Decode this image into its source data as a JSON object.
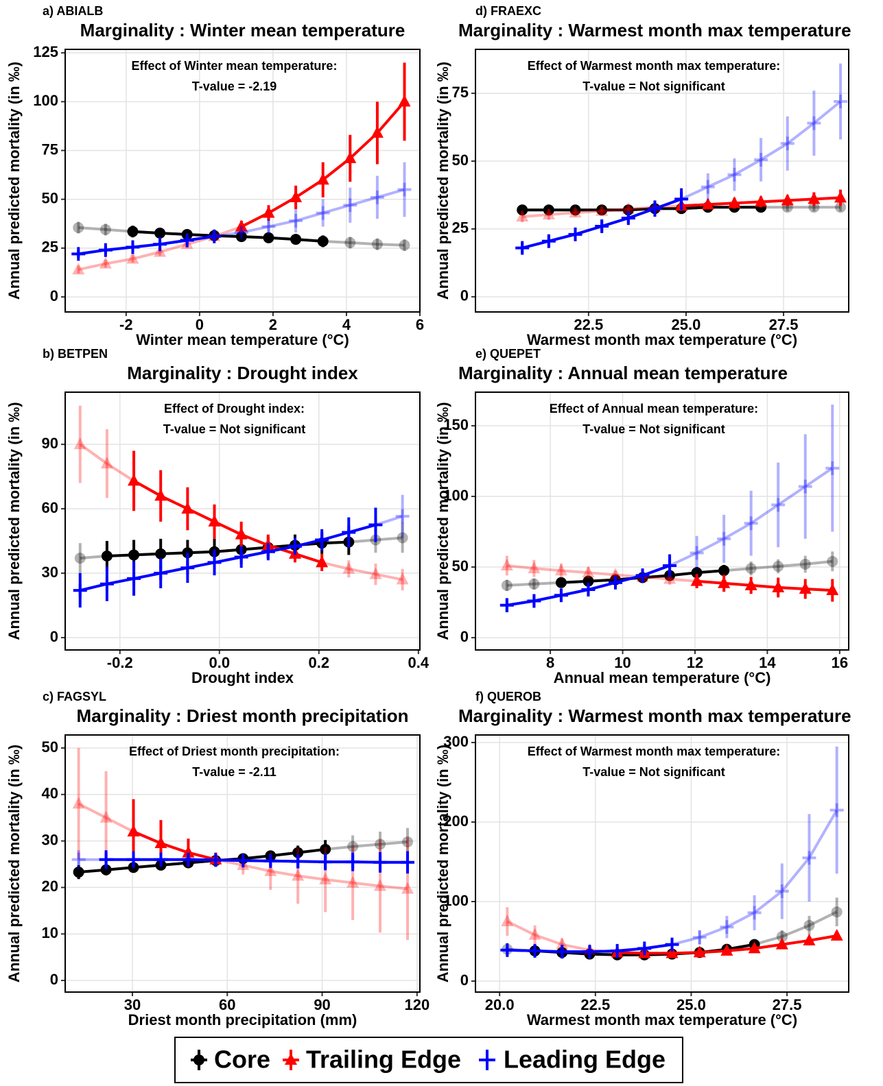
{
  "chart_data": [
    {
      "type": "line",
      "panel_label": "a) ABIALB",
      "title": "Marginality : Winter mean temperature",
      "annotation": [
        "Effect of Winter mean temperature:",
        "T-value = -2.19"
      ],
      "xlabel": "Winter mean temperature (°C)",
      "ylabel": "Annual predicted mortality (in ‰)",
      "xlim": [
        -3.66,
        6
      ],
      "ylim": [
        -7.7,
        126.8
      ],
      "xticks": [
        -2,
        0,
        2,
        4,
        6
      ],
      "yticks": [
        0,
        25,
        50,
        75,
        100,
        125
      ],
      "grid": true,
      "x": [
        -3.3,
        -2.56,
        -1.82,
        -1.08,
        -0.34,
        0.4,
        1.14,
        1.88,
        2.62,
        3.36,
        4.1,
        4.84,
        5.58
      ],
      "series": [
        {
          "name": "Core",
          "color": "#000000",
          "marker": "circle",
          "solid_xlim": [
            -2.5,
            3.4
          ],
          "values": [
            35.5,
            34.5,
            33.5,
            32.7,
            32,
            31.4,
            30.9,
            30.3,
            29.5,
            28.5,
            27.8,
            27,
            26.5
          ],
          "errors": [
            3,
            3,
            3,
            2.5,
            2.5,
            2,
            2,
            2,
            2.5,
            3,
            3,
            3,
            3
          ]
        },
        {
          "name": "Trailing Edge",
          "color": "#ff0000",
          "marker": "triangle",
          "solid_xlim": [
            0.6,
            5.6
          ],
          "values": [
            14,
            17,
            19.5,
            23,
            27,
            31,
            36,
            43,
            51,
            60,
            71,
            84,
            100
          ],
          "errors": [
            2,
            2,
            2,
            2,
            2,
            2,
            3,
            4,
            6,
            9,
            12,
            16,
            20
          ]
        },
        {
          "name": "Leading Edge",
          "color": "#0000ff",
          "marker": "plus",
          "solid_xlim": [
            -3.3,
            0.6
          ],
          "values": [
            22,
            24,
            25.5,
            27,
            29,
            31,
            33,
            36,
            39,
            43,
            47,
            51,
            55
          ],
          "errors": [
            2,
            2,
            2,
            2,
            2,
            2,
            3,
            4,
            6,
            7,
            9,
            11,
            14
          ]
        }
      ]
    },
    {
      "type": "line",
      "panel_label": "b) BETPEN",
      "title": "Marginality : Drought index",
      "annotation": [
        "Effect of Drought index:",
        "T-value = Not significant"
      ],
      "xlabel": "Drought index",
      "ylabel": "Annual predicted mortality (in ‰)",
      "xlim": [
        -0.31,
        0.403
      ],
      "ylim": [
        -5.75,
        114.3
      ],
      "xticks": [
        -0.2,
        {
          "value": 0,
          "label": "0.0"
        },
        0.2,
        {
          "value": 0.4,
          "label": "0.4"
        }
      ],
      "yticks": [
        0,
        30,
        60,
        90
      ],
      "grid": true,
      "x": [
        -0.28,
        -0.226,
        -0.172,
        -0.118,
        -0.064,
        -0.01,
        0.044,
        0.098,
        0.152,
        0.206,
        0.26,
        0.314,
        0.368
      ],
      "series": [
        {
          "name": "Core",
          "color": "#000000",
          "marker": "circle",
          "solid_xlim": [
            -0.23,
            0.3
          ],
          "values": [
            37,
            38,
            38.5,
            39,
            39.5,
            40,
            41,
            42,
            43,
            44,
            44.5,
            45.5,
            46.5
          ],
          "errors": [
            7,
            7,
            7,
            7,
            6,
            6,
            5,
            5,
            5,
            5,
            6,
            6,
            7
          ]
        },
        {
          "name": "Trailing Edge",
          "color": "#ff0000",
          "marker": "triangle",
          "solid_xlim": [
            -0.22,
            0.22
          ],
          "values": [
            90,
            81,
            73,
            66,
            60,
            54,
            48,
            43,
            39,
            35,
            32,
            29.5,
            27
          ],
          "errors": [
            18,
            16,
            14,
            12,
            10,
            8,
            6,
            5,
            4,
            4,
            4,
            5,
            5
          ]
        },
        {
          "name": "Leading Edge",
          "color": "#0000ff",
          "marker": "plus",
          "solid_xlim": [
            -0.28,
            0.33
          ],
          "values": [
            22,
            25,
            27.5,
            30,
            32.5,
            35,
            37.5,
            40,
            42.5,
            45.5,
            49,
            52.5,
            56.5
          ],
          "errors": [
            8,
            8,
            8,
            7,
            7,
            6,
            5,
            4,
            4,
            5,
            7,
            8,
            10
          ]
        }
      ]
    },
    {
      "type": "line",
      "panel_label": "c) FAGSYL",
      "title": "Marginality : Driest month precipitation",
      "annotation": [
        "Effect of Driest month precipitation:",
        "T-value = -2.11"
      ],
      "xlabel": "Driest month precipitation (mm)",
      "ylabel": "Annual predicted mortality (in ‰)",
      "xlim": [
        8.74,
        120.9
      ],
      "ylim": [
        -2.5,
        52.8
      ],
      "xticks": [
        30,
        60,
        90,
        120
      ],
      "yticks": [
        0,
        10,
        20,
        30,
        40,
        50
      ],
      "grid": true,
      "x": [
        13,
        21.67,
        30.33,
        39,
        47.67,
        56.33,
        65,
        73.67,
        82.33,
        91,
        99.67,
        108.33,
        117
      ],
      "series": [
        {
          "name": "Core",
          "color": "#000000",
          "marker": "circle",
          "solid_xlim": [
            13,
            92
          ],
          "values": [
            23.3,
            23.8,
            24.3,
            24.8,
            25.3,
            25.8,
            26.2,
            26.8,
            27.5,
            28.2,
            28.8,
            29.3,
            29.8
          ],
          "errors": [
            1.5,
            1.2,
            1,
            0.8,
            0.6,
            0.5,
            0.7,
            1,
            1.5,
            2,
            2.4,
            2.7,
            3
          ]
        },
        {
          "name": "Trailing Edge",
          "color": "#ff0000",
          "marker": "triangle",
          "solid_xlim": [
            30,
            57
          ],
          "values": [
            38,
            35,
            32,
            29.5,
            27.5,
            26,
            24.8,
            23.5,
            22.5,
            21.7,
            21,
            20.3,
            19.7
          ],
          "errors": [
            12,
            10,
            7,
            5,
            3,
            1.5,
            2,
            4,
            6,
            7,
            8,
            10,
            11
          ]
        },
        {
          "name": "Leading Edge",
          "color": "#0000ff",
          "marker": "plus",
          "solid_xlim": [
            21,
            117
          ],
          "values": [
            26,
            26,
            26,
            26,
            26,
            25.9,
            25.8,
            25.7,
            25.6,
            25.5,
            25.5,
            25.4,
            25.4
          ],
          "errors": [
            2,
            2,
            1.8,
            1.5,
            1,
            0.8,
            1,
            1.2,
            1.5,
            1.8,
            2,
            2.2,
            2.4
          ]
        }
      ]
    },
    {
      "type": "line",
      "panel_label": "d) FRAEXC",
      "title": "Marginality : Warmest month max temperature",
      "annotation": [
        "Effect of Warmest month max temperature:",
        "T-value = Not significant"
      ],
      "xlabel": "Warmest month max temperature (°C)",
      "ylabel": "Annual predicted mortality (in ‰)",
      "xlim": [
        19.6,
        29.17
      ],
      "ylim": [
        -5.6,
        91.2
      ],
      "xticks": [
        22.5,
        {
          "value": 25,
          "label": "25.0"
        },
        27.5
      ],
      "yticks": [
        0,
        25,
        50,
        75
      ],
      "grid": true,
      "x": [
        20.8,
        21.48,
        22.16,
        22.84,
        23.52,
        24.2,
        24.88,
        25.56,
        26.24,
        26.92,
        27.6,
        28.28,
        28.96
      ],
      "series": [
        {
          "name": "Core",
          "color": "#000000",
          "marker": "circle",
          "solid_xlim": [
            20.8,
            27.2
          ],
          "values": [
            32,
            32,
            32,
            32,
            32,
            32.5,
            32.5,
            33,
            33,
            33,
            33,
            33,
            33
          ],
          "errors": [
            1.5,
            1.5,
            1.5,
            1.5,
            1.5,
            1.5,
            1.5,
            1.5,
            1.5,
            1.5,
            1.5,
            1.5,
            1.5
          ]
        },
        {
          "name": "Trailing Edge",
          "color": "#ff0000",
          "marker": "triangle",
          "solid_xlim": [
            24.5,
            29
          ],
          "values": [
            29.5,
            30.3,
            31,
            31.6,
            32.3,
            33,
            33.5,
            34,
            34.5,
            35,
            35.5,
            36,
            36.5
          ],
          "errors": [
            2,
            2,
            1.5,
            1.5,
            1.5,
            1.5,
            1.5,
            1.5,
            2,
            2,
            2,
            2.5,
            3
          ]
        },
        {
          "name": "Leading Edge",
          "color": "#0000ff",
          "marker": "plus",
          "solid_xlim": [
            20.8,
            25
          ],
          "values": [
            18,
            20.5,
            23,
            26,
            29,
            32.5,
            36,
            40.5,
            45,
            50.5,
            56.5,
            64,
            72
          ],
          "errors": [
            2,
            2,
            2,
            2,
            2,
            3,
            4,
            5,
            6,
            8,
            10,
            12,
            14
          ]
        }
      ]
    },
    {
      "type": "line",
      "panel_label": "e) QUEPET",
      "title": "Marginality : Annual mean temperature",
      "annotation": [
        "Effect of Annual mean temperature:",
        "T-value = Not significant"
      ],
      "xlabel": "Annual mean temperature (°C)",
      "ylabel": "Annual predicted mortality (in ‰)",
      "xlim": [
        5.93,
        16.25
      ],
      "ylim": [
        -8.7,
        173.8
      ],
      "xticks": [
        8,
        10,
        12,
        14,
        16
      ],
      "yticks": [
        0,
        50,
        100,
        150
      ],
      "grid": true,
      "x": [
        6.8,
        7.55,
        8.3,
        9.05,
        9.8,
        10.55,
        11.3,
        12.05,
        12.8,
        13.55,
        14.3,
        15.05,
        15.8
      ],
      "series": [
        {
          "name": "Core",
          "color": "#000000",
          "marker": "circle",
          "solid_xlim": [
            7.7,
            13
          ],
          "values": [
            37,
            38,
            39,
            40,
            41,
            42.5,
            44,
            46,
            47.5,
            49,
            50.5,
            52,
            54
          ],
          "errors": [
            4,
            4,
            3,
            3,
            3,
            3,
            3,
            4,
            4,
            5,
            5,
            6,
            7
          ]
        },
        {
          "name": "Trailing Edge",
          "color": "#ff0000",
          "marker": "triangle",
          "solid_xlim": [
            11.5,
            15.8
          ],
          "values": [
            51,
            49,
            47.5,
            46,
            44.5,
            43,
            41.5,
            40,
            38.5,
            37,
            35.5,
            34.5,
            33.5
          ],
          "errors": [
            7,
            6,
            5,
            4,
            3,
            3,
            4,
            5,
            6,
            6,
            7,
            7,
            8
          ]
        },
        {
          "name": "Leading Edge",
          "color": "#0000ff",
          "marker": "plus",
          "solid_xlim": [
            6.8,
            11.7
          ],
          "values": [
            23,
            26,
            30,
            34,
            39,
            44,
            51,
            60,
            70,
            81,
            94,
            107,
            120
          ],
          "errors": [
            5,
            4,
            4,
            4,
            4,
            5,
            8,
            12,
            17,
            23,
            30,
            37,
            45
          ]
        }
      ]
    },
    {
      "type": "line",
      "panel_label": "f) QUEROB",
      "title": "Marginality : Warmest month max temperature",
      "annotation": [
        "Effect of Warmest month max temperature:",
        "T-value = Not significant"
      ],
      "xlabel": "Warmest month max temperature (°C)",
      "ylabel": "Annual predicted mortality (in ‰)",
      "xlim": [
        19.37,
        29.11
      ],
      "ylim": [
        -13.8,
        309.5
      ],
      "xticks": [
        {
          "value": 20,
          "label": "20.0"
        },
        22.5,
        {
          "value": 25,
          "label": "25.0"
        },
        27.5
      ],
      "yticks": [
        0,
        100,
        200,
        300
      ],
      "grid": true,
      "x": [
        20.2,
        20.92,
        21.63,
        22.35,
        23.07,
        23.78,
        24.5,
        25.22,
        25.93,
        26.65,
        27.37,
        28.08,
        28.8
      ],
      "series": [
        {
          "name": "Core",
          "color": "#000000",
          "marker": "circle",
          "solid_xlim": [
            20.3,
            27
          ],
          "values": [
            40,
            38,
            36,
            34,
            33,
            33,
            34,
            36,
            40,
            46,
            56,
            70,
            87
          ],
          "errors": [
            3,
            3,
            3,
            3,
            3,
            3,
            3,
            3,
            4,
            5,
            8,
            12,
            18
          ]
        },
        {
          "name": "Trailing Edge",
          "color": "#ff0000",
          "marker": "triangle",
          "solid_xlim": [
            22.5,
            28.8
          ],
          "values": [
            75,
            58,
            46,
            39,
            36,
            35,
            35,
            36,
            38,
            41,
            46,
            51,
            57
          ],
          "errors": [
            18,
            12,
            8,
            5,
            4,
            3,
            3,
            3,
            3,
            3,
            4,
            5,
            6
          ]
        },
        {
          "name": "Leading Edge",
          "color": "#0000ff",
          "marker": "plus",
          "solid_xlim": [
            20.2,
            24.8
          ],
          "values": [
            39,
            38,
            37,
            37,
            38,
            41,
            46,
            55,
            68,
            86,
            113,
            155,
            215
          ],
          "errors": [
            4,
            3,
            3,
            3,
            3,
            4,
            6,
            9,
            14,
            22,
            35,
            55,
            80
          ]
        }
      ]
    }
  ]
}
